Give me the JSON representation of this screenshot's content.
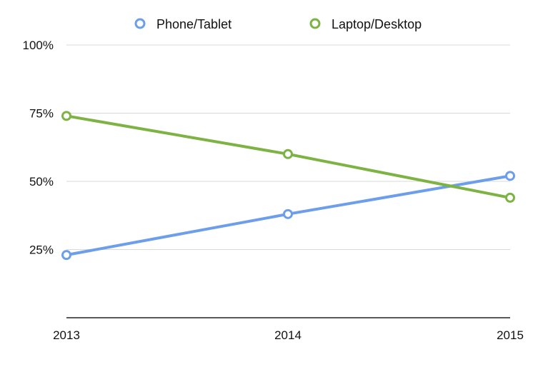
{
  "chart_data": {
    "type": "line",
    "categories": [
      "2013",
      "2014",
      "2015"
    ],
    "y_ticks": [
      25,
      50,
      75,
      100
    ],
    "y_tick_labels": [
      "25%",
      "50%",
      "75%",
      "100%"
    ],
    "ylim": [
      0,
      100
    ],
    "grid": true,
    "legend_position": "top-center",
    "series": [
      {
        "name": "Phone/Tablet",
        "values": [
          23,
          38,
          52
        ],
        "color": "#6d9eeb"
      },
      {
        "name": "Laptop/Desktop",
        "values": [
          74,
          60,
          44
        ],
        "color": "#7cb342"
      }
    ],
    "title": "",
    "xlabel": "",
    "ylabel": ""
  }
}
